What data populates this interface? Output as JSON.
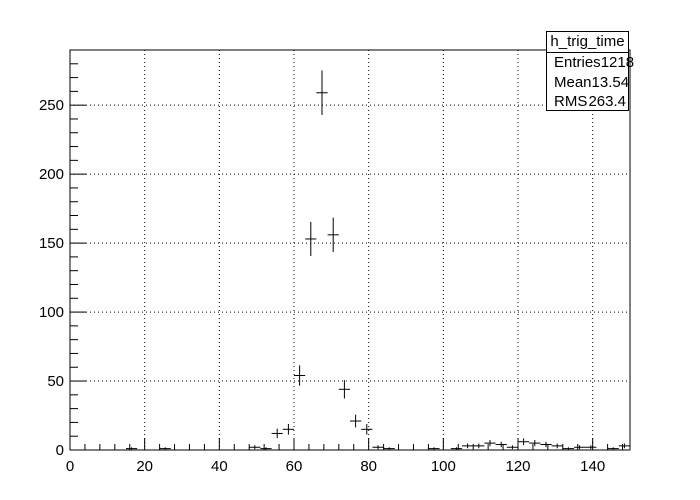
{
  "stats_box": {
    "title": "h_trig_time",
    "rows": [
      {
        "label": "Entries",
        "value": "1218"
      },
      {
        "label": "Mean",
        "value": "13.54"
      },
      {
        "label": "RMS",
        "value": "263.4"
      }
    ]
  },
  "chart_data": {
    "type": "histogram",
    "title": "",
    "xlabel": "",
    "ylabel": "",
    "xlim": [
      0,
      150
    ],
    "ylim": [
      0,
      290
    ],
    "grid": true,
    "bin_width": 3,
    "x_ticks": [
      "0",
      "20",
      "40",
      "60",
      "80",
      "100",
      "120",
      "140"
    ],
    "y_ticks": [
      "0",
      "50",
      "100",
      "150",
      "200",
      "250"
    ],
    "bins": [
      {
        "x": 1.5,
        "y": 0
      },
      {
        "x": 4.5,
        "y": 0
      },
      {
        "x": 7.5,
        "y": 0
      },
      {
        "x": 10.5,
        "y": 0
      },
      {
        "x": 13.5,
        "y": 0
      },
      {
        "x": 16.5,
        "y": 1
      },
      {
        "x": 19.5,
        "y": 0
      },
      {
        "x": 22.5,
        "y": 0
      },
      {
        "x": 25.5,
        "y": 1
      },
      {
        "x": 28.5,
        "y": 0
      },
      {
        "x": 31.5,
        "y": 0
      },
      {
        "x": 34.5,
        "y": 0
      },
      {
        "x": 37.5,
        "y": 0
      },
      {
        "x": 40.5,
        "y": 0
      },
      {
        "x": 43.5,
        "y": 0
      },
      {
        "x": 46.5,
        "y": 0
      },
      {
        "x": 49.5,
        "y": 2
      },
      {
        "x": 52.5,
        "y": 1
      },
      {
        "x": 55.5,
        "y": 12
      },
      {
        "x": 58.5,
        "y": 15
      },
      {
        "x": 61.5,
        "y": 54
      },
      {
        "x": 64.5,
        "y": 153
      },
      {
        "x": 67.5,
        "y": 259
      },
      {
        "x": 70.5,
        "y": 156
      },
      {
        "x": 73.5,
        "y": 44
      },
      {
        "x": 76.5,
        "y": 21
      },
      {
        "x": 79.5,
        "y": 15
      },
      {
        "x": 82.5,
        "y": 2
      },
      {
        "x": 85.5,
        "y": 1
      },
      {
        "x": 88.5,
        "y": 0
      },
      {
        "x": 91.5,
        "y": 0
      },
      {
        "x": 94.5,
        "y": 0
      },
      {
        "x": 97.5,
        "y": 1
      },
      {
        "x": 100.5,
        "y": 0
      },
      {
        "x": 103.5,
        "y": 1
      },
      {
        "x": 106.5,
        "y": 3
      },
      {
        "x": 109.5,
        "y": 3
      },
      {
        "x": 112.5,
        "y": 5
      },
      {
        "x": 115.5,
        "y": 4
      },
      {
        "x": 118.5,
        "y": 2
      },
      {
        "x": 121.5,
        "y": 6
      },
      {
        "x": 124.5,
        "y": 5
      },
      {
        "x": 127.5,
        "y": 4
      },
      {
        "x": 130.5,
        "y": 3
      },
      {
        "x": 133.5,
        "y": 1
      },
      {
        "x": 136.5,
        "y": 2
      },
      {
        "x": 139.5,
        "y": 2
      },
      {
        "x": 142.5,
        "y": 0
      },
      {
        "x": 145.5,
        "y": 1
      },
      {
        "x": 148.5,
        "y": 3
      }
    ]
  }
}
